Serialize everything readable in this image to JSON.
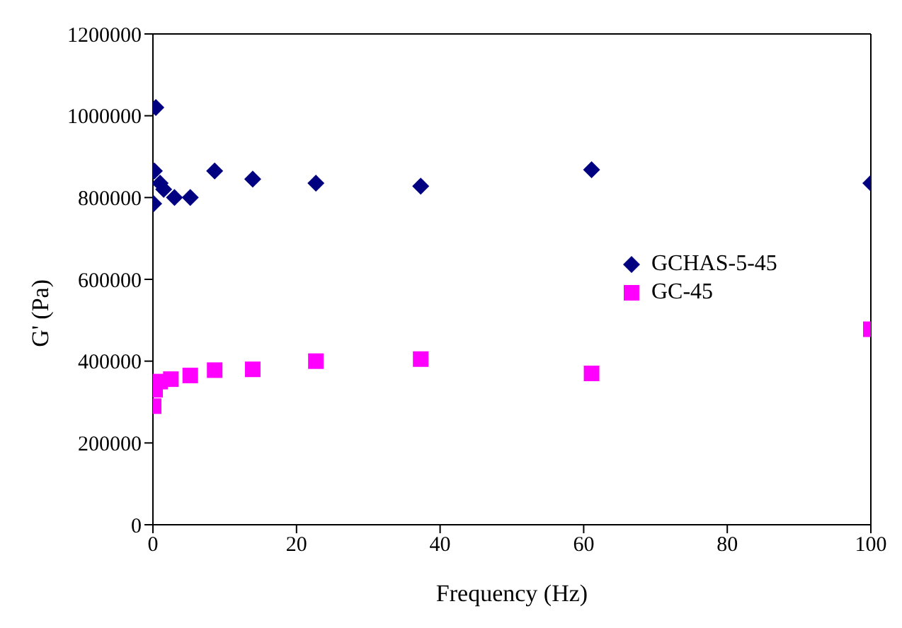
{
  "chart_data": {
    "type": "scatter",
    "xlabel": "Frequency (Hz)",
    "ylabel": "G' (Pa)",
    "xlim": [
      0,
      100
    ],
    "xticks": [
      0,
      20,
      40,
      60,
      80,
      100
    ],
    "ylim": [
      0,
      1200000
    ],
    "yticks": [
      0,
      200000,
      400000,
      600000,
      800000,
      1000000,
      1200000
    ],
    "grid": false,
    "legend": "right",
    "series": [
      {
        "name": "GCHAS-5-45",
        "color": "#000080",
        "marker": "diamond",
        "x": [
          0.1,
          0.2,
          0.4,
          1,
          1.5,
          3,
          5.2,
          8.6,
          13.9,
          22.7,
          37.3,
          61.1,
          100
        ],
        "values": [
          785000,
          865000,
          1020000,
          835000,
          820000,
          800000,
          800000,
          865000,
          845000,
          835000,
          828000,
          868000,
          835000
        ]
      },
      {
        "name": "GC-45",
        "color": "#ff00ff",
        "marker": "square",
        "x": [
          0.1,
          0.3,
          1,
          2.5,
          5.2,
          8.6,
          13.9,
          22.7,
          37.3,
          61.1,
          100
        ],
        "values": [
          290000,
          330000,
          350000,
          356000,
          365000,
          378000,
          380000,
          400000,
          405000,
          370000,
          478000
        ]
      }
    ]
  }
}
